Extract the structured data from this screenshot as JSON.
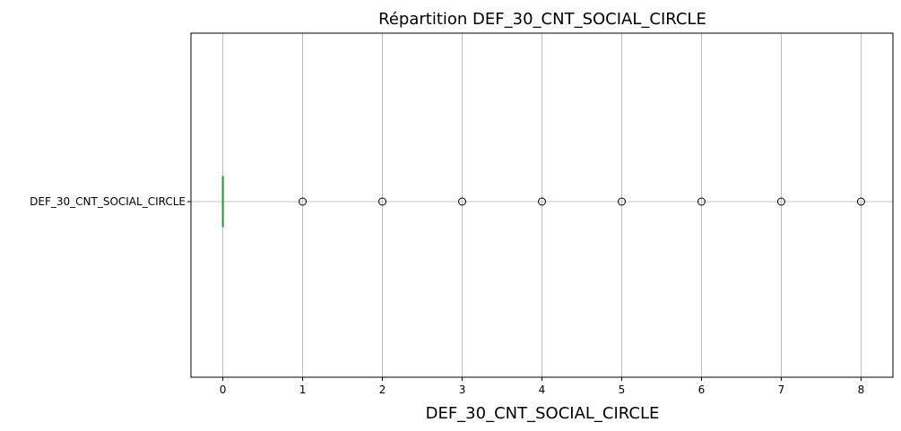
{
  "chart_data": {
    "type": "boxplot",
    "orientation": "horizontal",
    "title": "Répartition DEF_30_CNT_SOCIAL_CIRCLE",
    "xlabel": "DEF_30_CNT_SOCIAL_CIRCLE",
    "ylabel": "",
    "categories": [
      "DEF_30_CNT_SOCIAL_CIRCLE"
    ],
    "xlim": [
      -0.4,
      8.4
    ],
    "xticks": [
      0,
      1,
      2,
      3,
      4,
      5,
      6,
      7,
      8
    ],
    "grid": true,
    "series": [
      {
        "q1": 0,
        "median": 0,
        "q3": 0,
        "whisker_low": 0,
        "whisker_high": 0,
        "outliers": [
          1,
          2,
          3,
          4,
          5,
          6,
          7,
          8
        ]
      }
    ],
    "colors": {
      "box": "#1f77b4",
      "median": "#2ca02c",
      "flier": "#000000",
      "grid": "#b0b0b0"
    }
  }
}
